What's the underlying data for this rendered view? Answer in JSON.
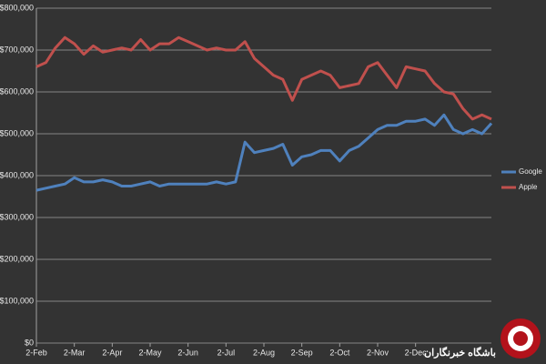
{
  "chart_data": {
    "type": "line",
    "categories": [
      "2-Feb",
      null,
      null,
      null,
      "2-Mar",
      null,
      null,
      null,
      "2-Apr",
      null,
      null,
      null,
      "2-May",
      null,
      null,
      null,
      "2-Jun",
      null,
      null,
      null,
      "2-Jul",
      null,
      null,
      null,
      "2-Aug",
      null,
      null,
      null,
      "2-Sep",
      null,
      null,
      null,
      "2-Oct",
      null,
      null,
      null,
      "2-Nov",
      null,
      null,
      null,
      "2-Dec",
      null,
      null,
      null,
      null,
      null,
      null,
      null,
      null
    ],
    "series": [
      {
        "name": "Google",
        "color": "#4f81bd",
        "values": [
          365000,
          370000,
          375000,
          380000,
          395000,
          385000,
          385000,
          390000,
          385000,
          375000,
          375000,
          380000,
          385000,
          375000,
          380000,
          380000,
          380000,
          380000,
          380000,
          385000,
          380000,
          385000,
          480000,
          455000,
          460000,
          465000,
          475000,
          425000,
          445000,
          450000,
          460000,
          460000,
          435000,
          460000,
          470000,
          490000,
          510000,
          520000,
          520000,
          530000,
          530000,
          535000,
          520000,
          545000,
          510000,
          500000,
          510000,
          500000,
          525000
        ]
      },
      {
        "name": "Apple",
        "color": "#c0504d",
        "values": [
          660000,
          670000,
          705000,
          730000,
          715000,
          690000,
          710000,
          695000,
          700000,
          705000,
          700000,
          725000,
          700000,
          715000,
          715000,
          730000,
          720000,
          710000,
          700000,
          705000,
          700000,
          700000,
          720000,
          680000,
          660000,
          640000,
          630000,
          580000,
          630000,
          640000,
          650000,
          640000,
          610000,
          615000,
          620000,
          660000,
          670000,
          640000,
          610000,
          660000,
          655000,
          650000,
          620000,
          600000,
          595000,
          560000,
          535000,
          545000,
          535000
        ]
      }
    ],
    "ylim": [
      0,
      800000
    ],
    "yticks": [
      {
        "value": 0,
        "label": "$0"
      },
      {
        "value": 100000,
        "label": "$100,000"
      },
      {
        "value": 200000,
        "label": "$200,000"
      },
      {
        "value": 300000,
        "label": "$300,000"
      },
      {
        "value": 400000,
        "label": "$400,000"
      },
      {
        "value": 500000,
        "label": "$500,000"
      },
      {
        "value": 600000,
        "label": "$600,000"
      },
      {
        "value": 700000,
        "label": "$700,000"
      },
      {
        "value": 800000,
        "label": "$800,000"
      }
    ],
    "grid": true,
    "legend": "right"
  },
  "watermark": "باشگاه خبرنگاران"
}
